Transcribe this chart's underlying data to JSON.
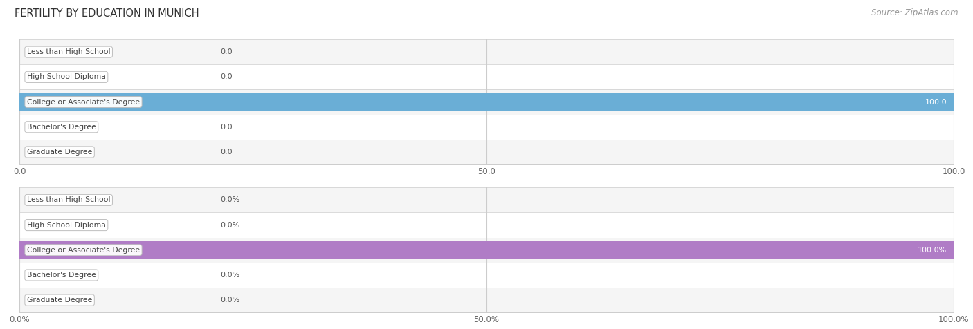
{
  "title": "FERTILITY BY EDUCATION IN MUNICH",
  "source": "Source: ZipAtlas.com",
  "categories": [
    "Less than High School",
    "High School Diploma",
    "College or Associate's Degree",
    "Bachelor's Degree",
    "Graduate Degree"
  ],
  "top_values": [
    0.0,
    0.0,
    100.0,
    0.0,
    0.0
  ],
  "bottom_values": [
    0.0,
    0.0,
    100.0,
    0.0,
    0.0
  ],
  "top_xlabels": [
    "0.0",
    "50.0",
    "100.0"
  ],
  "bottom_xlabels": [
    "0.0%",
    "50.0%",
    "100.0%"
  ],
  "top_bar_color": "#6AAED6",
  "bottom_bar_color": "#B07CC6",
  "row_bg_even": "#F5F5F5",
  "row_bg_odd": "#FFFFFF",
  "grid_color": "#CCCCCC",
  "label_bg": "#FFFFFF",
  "label_border": "#BBBBBB",
  "label_text_color": "#444444",
  "value_color_inside": "#FFFFFF",
  "value_color_outside": "#555555",
  "title_color": "#333333",
  "source_color": "#999999",
  "title_fontsize": 10.5,
  "source_fontsize": 8.5,
  "label_fontsize": 7.8,
  "tick_fontsize": 8.5,
  "value_fontsize": 8.0
}
